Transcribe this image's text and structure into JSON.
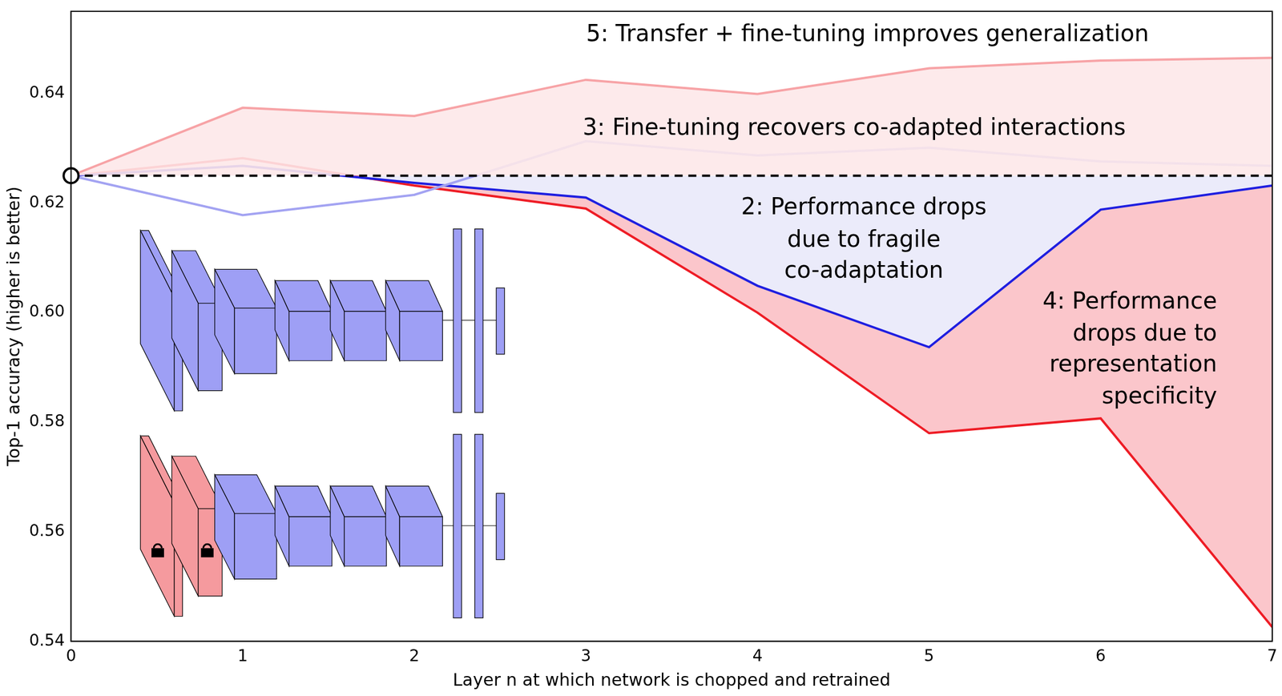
{
  "chart_data": {
    "type": "line",
    "x_label": "Layer n at which network is chopped and retrained",
    "y_label": "Top-1 accuracy (higher is better)",
    "x": [
      0,
      1,
      2,
      3,
      4,
      5,
      6,
      7
    ],
    "xlim": [
      0,
      7
    ],
    "xticks": [
      0,
      1,
      2,
      3,
      4,
      5,
      6,
      7
    ],
    "ylim": [
      0.54,
      0.655
    ],
    "yticks": [
      0.54,
      0.56,
      0.58,
      {
        "value": 0.6,
        "label": "0.60"
      },
      0.62,
      0.64
    ],
    "grid": false,
    "series": [
      {
        "color": "#000000",
        "line_style": "dashed",
        "values": [
          0.625,
          0.625,
          0.625,
          0.625,
          0.625,
          0.625,
          0.625,
          0.625
        ]
      },
      {
        "color": "#f7a3a6",
        "line_style": "solid",
        "values": [
          0.625,
          0.6374,
          0.6359,
          0.6425,
          0.6399,
          0.6446,
          0.646,
          0.6465
        ]
      },
      {
        "color": "#a3a3f2",
        "line_style": "solid",
        "values": [
          0.625,
          0.6178,
          0.6215,
          0.6313,
          0.6287,
          0.6301,
          0.6276,
          0.6268
        ]
      },
      {
        "color": "#1f1fe0",
        "line_style": "solid",
        "values": [
          0.625,
          0.6268,
          0.6237,
          0.621,
          0.6049,
          0.5937,
          0.6188,
          0.6232
        ]
      },
      {
        "color": "#ee1c25",
        "line_style": "solid",
        "values": [
          0.625,
          0.6282,
          0.6232,
          0.619,
          0.6,
          0.578,
          0.5807,
          0.5426
        ]
      },
      {
        "color": "#000000",
        "line_style": "none",
        "marker": "circle",
        "values": [
          0.625,
          null,
          null,
          null,
          null,
          null,
          null,
          null
        ]
      }
    ],
    "annotations": [
      {
        "text": [
          "5: Transfer + fine-tuning improves generalization"
        ]
      },
      {
        "text": [
          "3: Fine-tuning recovers co-adapted interactions"
        ]
      },
      {
        "text": [
          "2: Performance drops",
          "due to fragile",
          "co-adaptation"
        ]
      },
      {
        "text": [
          "4: Performance",
          "drops due to",
          "representation",
          "specificity"
        ]
      }
    ],
    "legend": false
  }
}
